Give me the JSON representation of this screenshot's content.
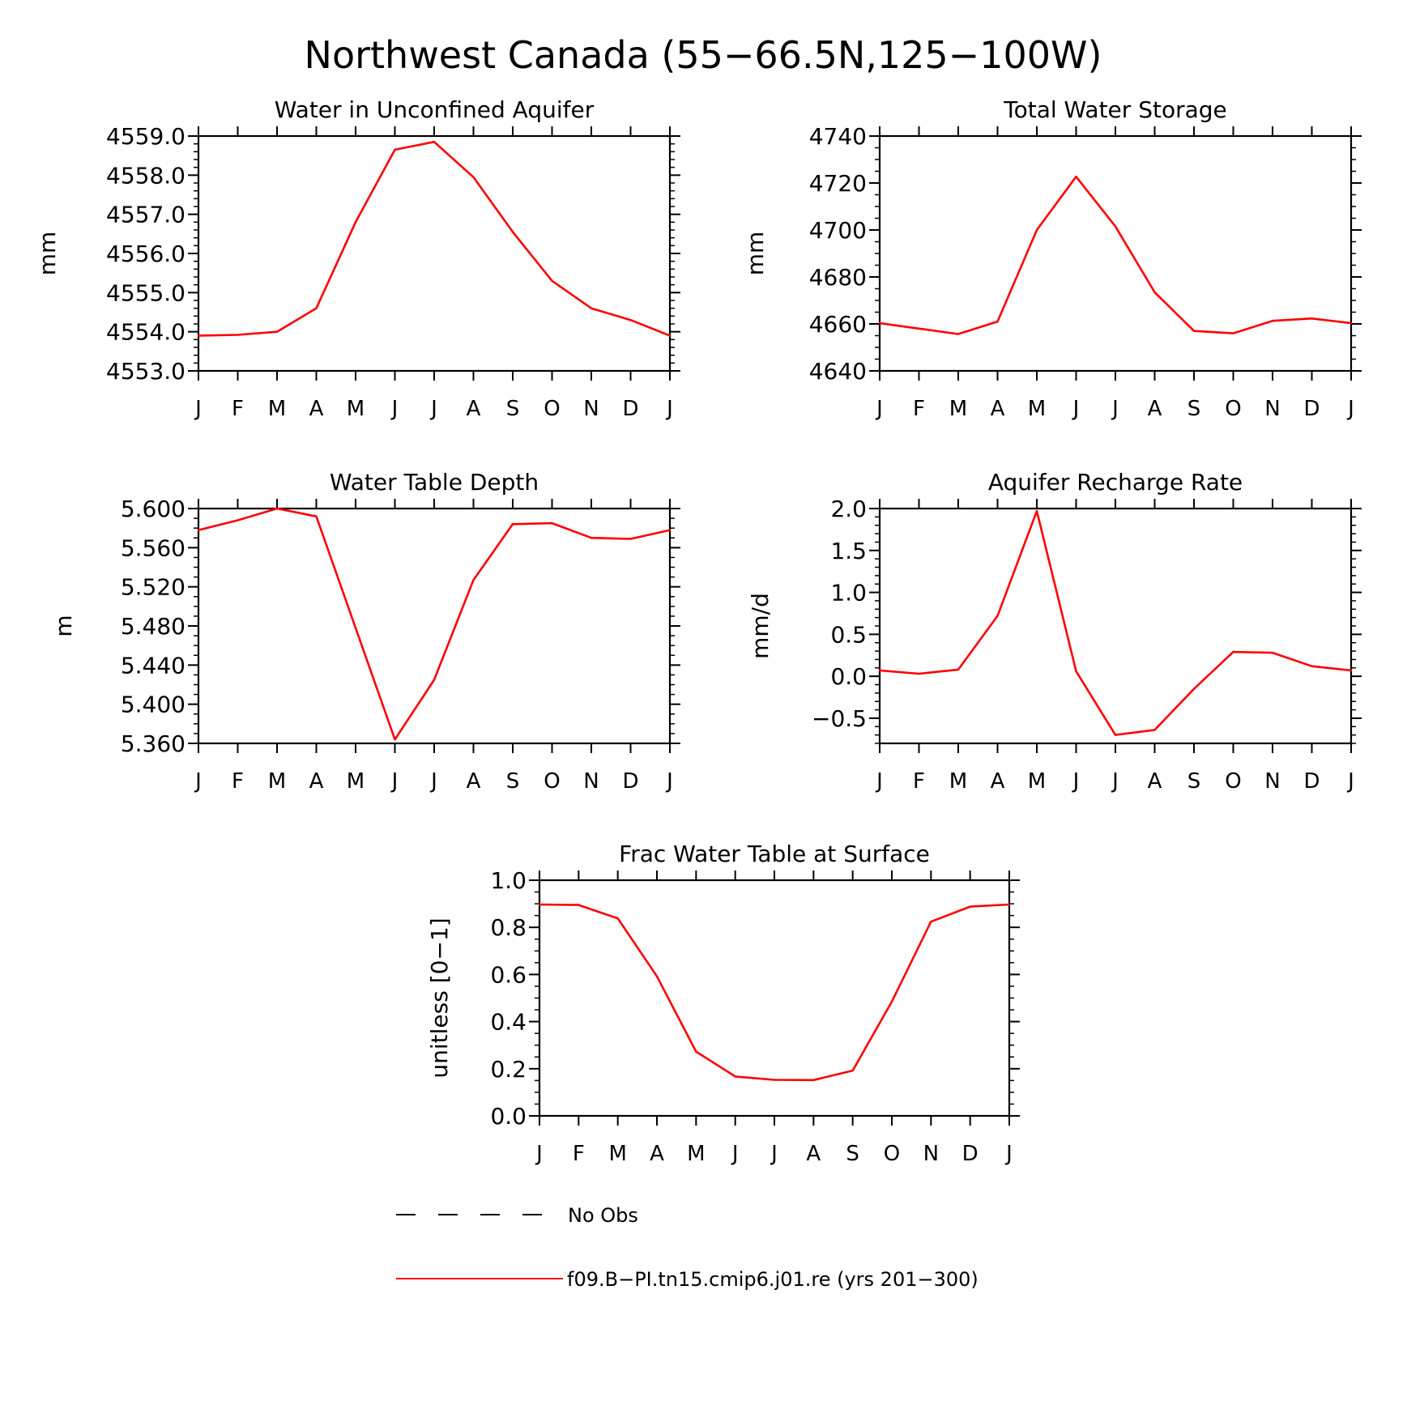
{
  "figure_title": "Northwest Canada (55−66.5N,125−100W)",
  "month_labels": [
    "J",
    "F",
    "M",
    "A",
    "M",
    "J",
    "J",
    "A",
    "S",
    "O",
    "N",
    "D",
    "J"
  ],
  "line_color": "#ff0000",
  "legend": {
    "entries": [
      {
        "label": "No Obs",
        "style": "dashed",
        "color": "#000000"
      },
      {
        "label": "f09.B−PI.tn15.cmip6.j01.re (yrs 201−300)",
        "style": "solid",
        "color": "#ff0000"
      }
    ]
  },
  "chart_data": [
    {
      "id": "unconfined-aquifer",
      "type": "line",
      "title": "Water in Unconfined Aquifer",
      "ylabel": "mm",
      "xlabel": "",
      "ylim": [
        4553.0,
        4559.0
      ],
      "yticks": [
        4553.0,
        4554.0,
        4555.0,
        4556.0,
        4557.0,
        4558.0,
        4559.0
      ],
      "ytick_labels": [
        "4553.0",
        "4554.0",
        "4555.0",
        "4556.0",
        "4557.0",
        "4558.0",
        "4559.0"
      ],
      "yminor": 0.2,
      "values": [
        4553.9,
        4553.92,
        4554.0,
        4554.6,
        4556.8,
        4558.65,
        4558.85,
        4557.95,
        4556.55,
        4555.3,
        4554.6,
        4554.3,
        4553.9
      ]
    },
    {
      "id": "total-water-storage",
      "type": "line",
      "title": "Total Water Storage",
      "ylabel": "mm",
      "xlabel": "",
      "ylim": [
        4640,
        4740
      ],
      "yticks": [
        4640,
        4660,
        4680,
        4700,
        4720,
        4740
      ],
      "ytick_labels": [
        "4640",
        "4660",
        "4680",
        "4700",
        "4720",
        "4740"
      ],
      "yminor": 5,
      "values": [
        4660.3,
        4658.0,
        4655.7,
        4661.0,
        4700.0,
        4722.7,
        4701.5,
        4673.5,
        4657.0,
        4656.0,
        4661.3,
        4662.3,
        4660.3
      ]
    },
    {
      "id": "water-table-depth",
      "type": "line",
      "title": "Water Table Depth",
      "ylabel": "m",
      "xlabel": "",
      "ylim": [
        5.36,
        5.6
      ],
      "yticks": [
        5.36,
        5.4,
        5.44,
        5.48,
        5.52,
        5.56,
        5.6
      ],
      "ytick_labels": [
        "5.360",
        "5.400",
        "5.440",
        "5.480",
        "5.520",
        "5.560",
        "5.600"
      ],
      "yminor": 0.01,
      "values": [
        5.578,
        5.588,
        5.6,
        5.592,
        5.478,
        5.364,
        5.425,
        5.527,
        5.584,
        5.585,
        5.57,
        5.569,
        5.578
      ]
    },
    {
      "id": "aquifer-recharge-rate",
      "type": "line",
      "title": "Aquifer Recharge Rate",
      "ylabel": "mm/d",
      "xlabel": "",
      "ylim": [
        -0.8,
        2.0
      ],
      "yticks": [
        -0.5,
        0.0,
        0.5,
        1.0,
        1.5,
        2.0
      ],
      "ytick_labels": [
        "−0.5",
        "0.0",
        "0.5",
        "1.0",
        "1.5",
        "2.0"
      ],
      "yminor": 0.1,
      "values": [
        0.07,
        0.03,
        0.08,
        0.72,
        1.97,
        0.06,
        -0.7,
        -0.64,
        -0.15,
        0.29,
        0.28,
        0.12,
        0.07
      ]
    },
    {
      "id": "frac-water-table-surface",
      "type": "line",
      "title": "Frac Water Table at Surface",
      "ylabel": "unitless [0−1]",
      "xlabel": "",
      "ylim": [
        0.0,
        1.0
      ],
      "yticks": [
        0.0,
        0.2,
        0.4,
        0.6,
        0.8,
        1.0
      ],
      "ytick_labels": [
        "0.0",
        "0.2",
        "0.4",
        "0.6",
        "0.8",
        "1.0"
      ],
      "yminor": 0.05,
      "values": [
        0.897,
        0.895,
        0.838,
        0.592,
        0.273,
        0.167,
        0.153,
        0.152,
        0.192,
        0.485,
        0.824,
        0.888,
        0.897
      ]
    }
  ]
}
